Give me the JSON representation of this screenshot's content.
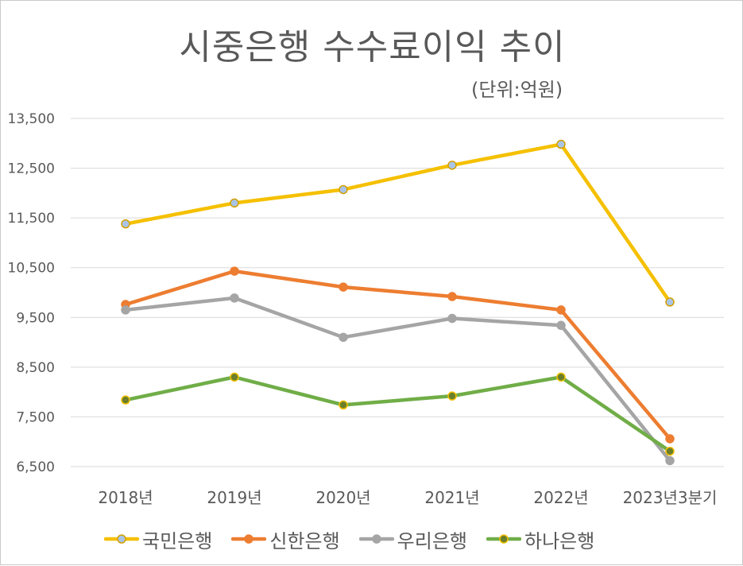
{
  "chart_data": {
    "type": "line",
    "title": "시중은행 수수료이익 추이",
    "unit_note": "(단위:억원)",
    "xlabel": "",
    "ylabel": "",
    "categories": [
      "2018년",
      "2019년",
      "2020년",
      "2021년",
      "2022년",
      "2023년3분기"
    ],
    "ylim": [
      6500,
      13500
    ],
    "yticks": [
      6500,
      7500,
      8500,
      9500,
      10500,
      11500,
      12500,
      13500
    ],
    "ytick_labels": [
      "6,500",
      "7,500",
      "8,500",
      "9,500",
      "10,500",
      "11,500",
      "12,500",
      "13,500"
    ],
    "grid": true,
    "legend_position": "bottom",
    "series": [
      {
        "name": "국민은행",
        "color": "#f5c000",
        "marker_fill": "#a9c4e6",
        "marker_edge": "#d4a000",
        "values": [
          11380,
          11800,
          12070,
          12560,
          12980,
          9810
        ]
      },
      {
        "name": "신한은행",
        "color": "#ed7d31",
        "marker_fill": "#ed7d31",
        "marker_edge": "#ed7d31",
        "values": [
          9760,
          10430,
          10110,
          9920,
          9650,
          7060
        ]
      },
      {
        "name": "우리은행",
        "color": "#a5a5a5",
        "marker_fill": "#a5a5a5",
        "marker_edge": "#a5a5a5",
        "values": [
          9650,
          9890,
          9100,
          9480,
          9340,
          6620
        ]
      },
      {
        "name": "하나은행",
        "color": "#70ad47",
        "marker_fill": "#6b7f2a",
        "marker_edge": "#f5c000",
        "values": [
          7840,
          8300,
          7740,
          7920,
          8300,
          6810
        ]
      }
    ]
  }
}
